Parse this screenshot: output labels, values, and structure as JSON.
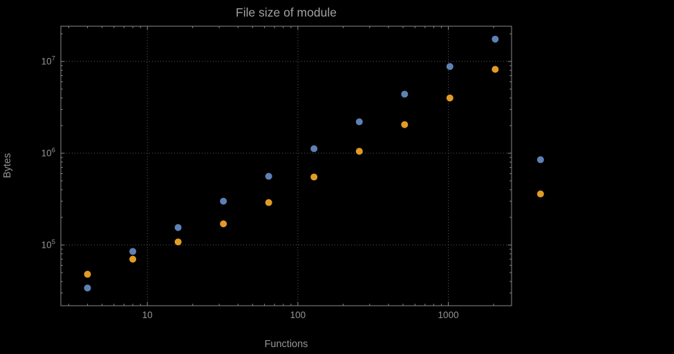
{
  "chart_data": {
    "type": "scatter",
    "title": "File size of module",
    "xlabel": "Functions",
    "ylabel": "Bytes",
    "x_scale": "log",
    "y_scale": "log",
    "grid": "dotted-major",
    "legend": "none",
    "x": [
      4,
      8,
      16,
      32,
      64,
      128,
      256,
      512,
      1024,
      2048,
      4096
    ],
    "series": [
      {
        "name": "blue",
        "color": "#5E81B5",
        "values": [
          34000,
          85000,
          155000,
          300000,
          560000,
          1120000,
          2200000,
          4400000,
          8800000,
          17500000,
          850000
        ]
      },
      {
        "name": "orange",
        "color": "#E19C24",
        "values": [
          48000,
          70000,
          108000,
          170000,
          290000,
          550000,
          1050000,
          2050000,
          4000000,
          8200000,
          360000
        ]
      }
    ],
    "x_ticks": [
      10,
      100,
      1000
    ],
    "x_tick_labels": [
      "10",
      "100",
      "1000"
    ],
    "y_ticks": [
      100000,
      1000000,
      10000000
    ],
    "y_tick_labels": [
      "10^5",
      "10^6",
      "10^7"
    ],
    "x_range": [
      2.66,
      2630
    ],
    "y_range": [
      21800,
      24200000
    ]
  },
  "colors": {
    "background": "#000000",
    "frame": "#8c8c8c",
    "grid": "#5e5e5e",
    "text": "#959595",
    "title": "#a2a2a2",
    "series_blue": "#5E81B5",
    "series_orange": "#E19C24"
  }
}
